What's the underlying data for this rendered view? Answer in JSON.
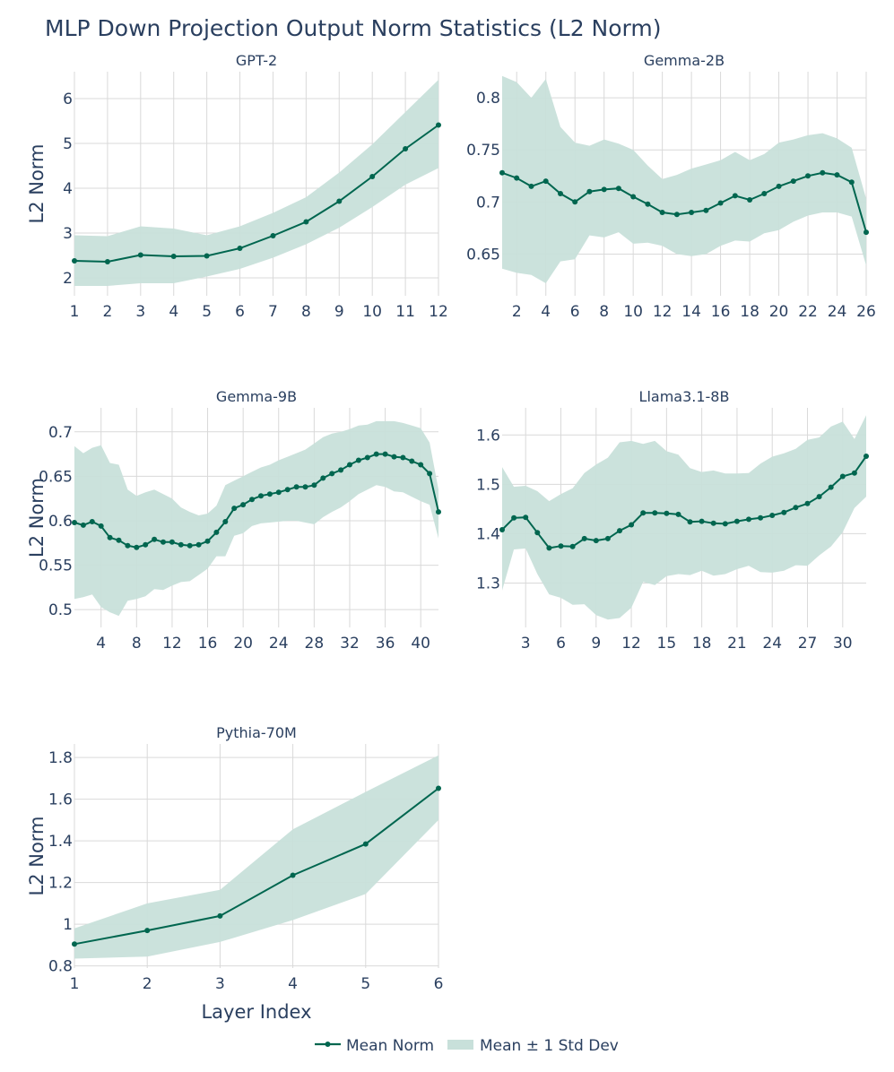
{
  "title": "MLP Down Projection Output Norm Statistics (L2 Norm)",
  "colors": {
    "line": "#00664f",
    "band": "#c8e0da",
    "grid": "#d9d9d9",
    "text": "#2a3f5f"
  },
  "legend": {
    "mean": "Mean Norm",
    "band": "Mean ± 1 Std Dev"
  },
  "chart_data": [
    {
      "type": "line",
      "title": "GPT-2",
      "ylabel": "L2 Norm",
      "xlabel": "",
      "xlim": [
        1,
        12
      ],
      "ylim": [
        1.6,
        6.6
      ],
      "xticks": [
        1,
        2,
        3,
        4,
        5,
        6,
        7,
        8,
        9,
        10,
        11,
        12
      ],
      "yticks": [
        2,
        3,
        4,
        5,
        6
      ],
      "ytick_labels": [
        "2",
        "3",
        "4",
        "5",
        "6"
      ],
      "x": [
        1,
        2,
        3,
        4,
        5,
        6,
        7,
        8,
        9,
        10,
        11,
        12
      ],
      "mean": [
        2.38,
        2.36,
        2.51,
        2.48,
        2.49,
        2.66,
        2.94,
        3.25,
        3.71,
        4.26,
        4.88,
        5.41
      ],
      "upper": [
        2.95,
        2.93,
        3.15,
        3.1,
        2.95,
        3.15,
        3.45,
        3.8,
        4.35,
        4.98,
        5.7,
        6.42
      ],
      "lower": [
        1.82,
        1.82,
        1.88,
        1.88,
        2.03,
        2.2,
        2.45,
        2.75,
        3.12,
        3.58,
        4.08,
        4.45
      ]
    },
    {
      "type": "line",
      "title": "Gemma-2B",
      "ylabel": "",
      "xlabel": "",
      "xlim": [
        1,
        26
      ],
      "ylim": [
        0.61,
        0.825
      ],
      "xticks": [
        2,
        4,
        6,
        8,
        10,
        12,
        14,
        16,
        18,
        20,
        22,
        24,
        26
      ],
      "yticks": [
        0.65,
        0.7,
        0.75,
        0.8
      ],
      "ytick_labels": [
        "0.65",
        "0.7",
        "0.75",
        "0.8"
      ],
      "x": [
        1,
        2,
        3,
        4,
        5,
        6,
        7,
        8,
        9,
        10,
        11,
        12,
        13,
        14,
        15,
        16,
        17,
        18,
        19,
        20,
        21,
        22,
        23,
        24,
        25,
        26
      ],
      "mean": [
        0.728,
        0.723,
        0.715,
        0.72,
        0.708,
        0.7,
        0.71,
        0.712,
        0.713,
        0.705,
        0.698,
        0.69,
        0.688,
        0.69,
        0.692,
        0.699,
        0.706,
        0.702,
        0.708,
        0.715,
        0.72,
        0.725,
        0.728,
        0.726,
        0.719,
        0.671
      ],
      "upper": [
        0.821,
        0.815,
        0.8,
        0.818,
        0.772,
        0.757,
        0.754,
        0.76,
        0.756,
        0.75,
        0.735,
        0.722,
        0.726,
        0.732,
        0.736,
        0.74,
        0.748,
        0.74,
        0.746,
        0.757,
        0.76,
        0.764,
        0.766,
        0.761,
        0.752,
        0.703
      ],
      "lower": [
        0.636,
        0.632,
        0.63,
        0.622,
        0.643,
        0.645,
        0.668,
        0.666,
        0.671,
        0.66,
        0.661,
        0.658,
        0.65,
        0.648,
        0.65,
        0.658,
        0.663,
        0.662,
        0.67,
        0.673,
        0.681,
        0.687,
        0.69,
        0.69,
        0.686,
        0.639
      ]
    },
    {
      "type": "line",
      "title": "Gemma-9B",
      "ylabel": "L2 Norm",
      "xlabel": "",
      "xlim": [
        1,
        42
      ],
      "ylim": [
        0.48,
        0.727
      ],
      "xticks": [
        4,
        8,
        12,
        16,
        20,
        24,
        28,
        32,
        36,
        40
      ],
      "yticks": [
        0.5,
        0.55,
        0.6,
        0.65,
        0.7
      ],
      "ytick_labels": [
        "0.5",
        "0.55",
        "0.6",
        "0.65",
        "0.7"
      ],
      "x": [
        1,
        2,
        3,
        4,
        5,
        6,
        7,
        8,
        9,
        10,
        11,
        12,
        13,
        14,
        15,
        16,
        17,
        18,
        19,
        20,
        21,
        22,
        23,
        24,
        25,
        26,
        27,
        28,
        29,
        30,
        31,
        32,
        33,
        34,
        35,
        36,
        37,
        38,
        39,
        40,
        41,
        42
      ],
      "mean": [
        0.598,
        0.595,
        0.599,
        0.594,
        0.581,
        0.578,
        0.572,
        0.57,
        0.573,
        0.579,
        0.576,
        0.576,
        0.573,
        0.572,
        0.573,
        0.577,
        0.587,
        0.599,
        0.614,
        0.618,
        0.624,
        0.628,
        0.63,
        0.632,
        0.635,
        0.638,
        0.638,
        0.64,
        0.648,
        0.653,
        0.657,
        0.663,
        0.668,
        0.671,
        0.675,
        0.675,
        0.672,
        0.671,
        0.667,
        0.663,
        0.653,
        0.61
      ],
      "upper": [
        0.684,
        0.676,
        0.682,
        0.685,
        0.665,
        0.663,
        0.635,
        0.628,
        0.632,
        0.635,
        0.63,
        0.625,
        0.615,
        0.61,
        0.606,
        0.608,
        0.617,
        0.64,
        0.645,
        0.65,
        0.655,
        0.66,
        0.663,
        0.668,
        0.672,
        0.676,
        0.68,
        0.687,
        0.694,
        0.698,
        0.7,
        0.703,
        0.707,
        0.708,
        0.712,
        0.712,
        0.712,
        0.71,
        0.707,
        0.704,
        0.688,
        0.635
      ],
      "lower": [
        0.512,
        0.514,
        0.517,
        0.503,
        0.497,
        0.493,
        0.51,
        0.512,
        0.515,
        0.523,
        0.522,
        0.527,
        0.531,
        0.532,
        0.539,
        0.546,
        0.56,
        0.56,
        0.583,
        0.586,
        0.594,
        0.597,
        0.598,
        0.599,
        0.6,
        0.6,
        0.598,
        0.596,
        0.604,
        0.61,
        0.615,
        0.622,
        0.63,
        0.635,
        0.64,
        0.638,
        0.633,
        0.632,
        0.627,
        0.622,
        0.618,
        0.58
      ]
    },
    {
      "type": "line",
      "title": "Llama3.1-8B",
      "ylabel": "",
      "xlabel": "",
      "xlim": [
        1,
        32
      ],
      "ylim": [
        1.21,
        1.655
      ],
      "xticks": [
        3,
        6,
        9,
        12,
        15,
        18,
        21,
        24,
        27,
        30
      ],
      "yticks": [
        1.3,
        1.4,
        1.5,
        1.6
      ],
      "ytick_labels": [
        "1.3",
        "1.4",
        "1.5",
        "1.6"
      ],
      "x": [
        1,
        2,
        3,
        4,
        5,
        6,
        7,
        8,
        9,
        10,
        11,
        12,
        13,
        14,
        15,
        16,
        17,
        18,
        19,
        20,
        21,
        22,
        23,
        24,
        25,
        26,
        27,
        28,
        29,
        30,
        31,
        32
      ],
      "mean": [
        1.408,
        1.432,
        1.433,
        1.402,
        1.371,
        1.375,
        1.374,
        1.39,
        1.386,
        1.39,
        1.406,
        1.418,
        1.442,
        1.442,
        1.441,
        1.439,
        1.424,
        1.425,
        1.421,
        1.42,
        1.425,
        1.429,
        1.432,
        1.437,
        1.443,
        1.453,
        1.461,
        1.475,
        1.494,
        1.516,
        1.523,
        1.557
      ],
      "upper": [
        1.535,
        1.495,
        1.497,
        1.486,
        1.466,
        1.48,
        1.492,
        1.523,
        1.54,
        1.554,
        1.585,
        1.588,
        1.582,
        1.588,
        1.567,
        1.56,
        1.533,
        1.525,
        1.528,
        1.522,
        1.522,
        1.523,
        1.542,
        1.556,
        1.563,
        1.572,
        1.59,
        1.595,
        1.617,
        1.627,
        1.592,
        1.64
      ],
      "lower": [
        1.285,
        1.368,
        1.37,
        1.318,
        1.277,
        1.27,
        1.256,
        1.257,
        1.235,
        1.226,
        1.229,
        1.25,
        1.302,
        1.296,
        1.314,
        1.318,
        1.316,
        1.325,
        1.315,
        1.318,
        1.328,
        1.335,
        1.322,
        1.321,
        1.325,
        1.336,
        1.335,
        1.356,
        1.374,
        1.403,
        1.452,
        1.475
      ]
    },
    {
      "type": "line",
      "title": "Pythia-70M",
      "ylabel": "L2 Norm",
      "xlabel": "Layer Index",
      "xlim": [
        1,
        6
      ],
      "ylim": [
        0.79,
        1.865
      ],
      "xticks": [
        1,
        2,
        3,
        4,
        5,
        6
      ],
      "yticks": [
        0.8,
        1,
        1.2,
        1.4,
        1.6,
        1.8
      ],
      "ytick_labels": [
        "0.8",
        "1",
        "1.2",
        "1.4",
        "1.6",
        "1.8"
      ],
      "x": [
        1,
        2,
        3,
        4,
        5,
        6
      ],
      "mean": [
        0.905,
        0.97,
        1.04,
        1.235,
        1.385,
        1.652
      ],
      "upper": [
        0.98,
        1.1,
        1.165,
        1.455,
        1.635,
        1.81
      ],
      "lower": [
        0.835,
        0.845,
        0.915,
        1.02,
        1.145,
        1.5
      ]
    }
  ]
}
